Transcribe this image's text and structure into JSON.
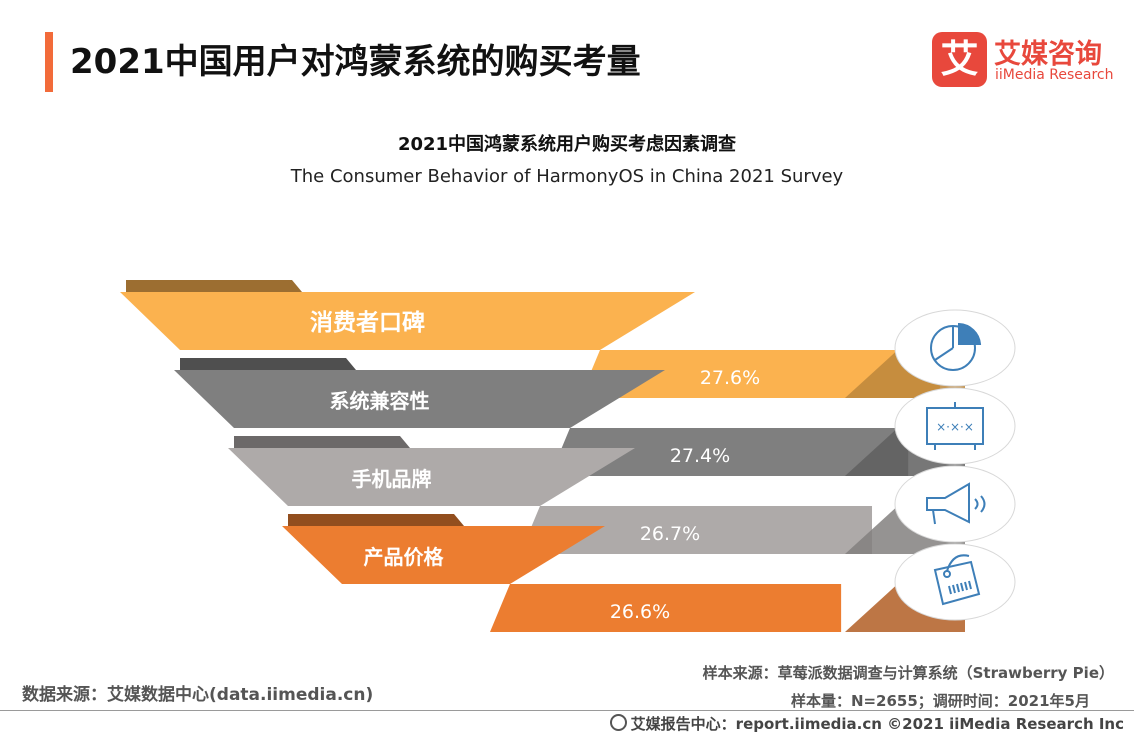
{
  "header": {
    "title": "2021中国用户对鸿蒙系统的购买考量",
    "logo_glyph": "艾",
    "logo_cn": "艾媒咨询",
    "logo_en": "iiMedia Research"
  },
  "chart_data": {
    "type": "bar",
    "title": "2021中国鸿蒙系统用户购买考虑因素调查",
    "subtitle": "The Consumer Behavior of HarmonyOS in China 2021 Survey",
    "categories": [
      "消费者口碑",
      "系统兼容性",
      "手机品牌",
      "产品价格"
    ],
    "values": [
      27.6,
      27.4,
      26.7,
      26.6
    ],
    "value_labels": [
      "27.6%",
      "27.4%",
      "26.7%",
      "26.6%"
    ],
    "colors": [
      "#fbb24f",
      "#7f7f7f",
      "#aeaaa9",
      "#ec7d30"
    ],
    "icons": [
      "pie-chart-icon",
      "strategy-board-icon",
      "megaphone-icon",
      "price-tag-icon"
    ]
  },
  "footer": {
    "source": "数据来源：艾媒数据中心(data.iimedia.cn)",
    "sample_source": "样本来源：草莓派数据调查与计算系统（Strawberry Pie）",
    "sample_size": "样本量：N=2655；调研时间：2021年5月",
    "report": "艾媒报告中心：report.iimedia.cn   ©2021  iiMedia Research  Inc"
  }
}
